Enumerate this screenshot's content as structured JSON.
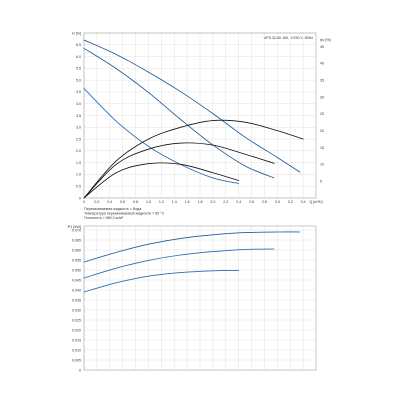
{
  "chart_data": [
    {
      "type": "line",
      "model": "UPS 32-80 180, 1*230 V, 50Hz",
      "ylabel_left": "H [m]",
      "ylabel_right": "η [%]",
      "xlabel": "Q [m³/h]",
      "xlim": [
        0,
        3.6
      ],
      "ylim_left": [
        0,
        7
      ],
      "ylim_right": [
        0,
        49
      ],
      "x_ticks": [
        "0",
        "0.2",
        "0.4",
        "0.6",
        "0.8",
        "1.0",
        "1.2",
        "1.4",
        "1.6",
        "1.8",
        "2.0",
        "2.2",
        "2.4",
        "2.6",
        "2.8",
        "3.0",
        "3.2",
        "3.4",
        "Q [m³/h]"
      ],
      "y_ticks_left": [
        "H [m]",
        "6.5",
        "6.0",
        "5.5",
        "5.0",
        "4.5",
        "4.0",
        "3.5",
        "3.0",
        "2.5",
        "2.0",
        "1.5",
        "1.0",
        "0.5",
        "0"
      ],
      "y_ticks_right": [
        "ηs [%]",
        "45",
        "40",
        "35",
        "30",
        "25",
        "20",
        "15",
        "10",
        "5"
      ],
      "grid": true,
      "notes": [
        "Перекачиваемая жидкость = Вода",
        "Температура перекачиваемой жидкости = 65 °C",
        "Плотность = 980.2 кг/м³"
      ],
      "series": [
        {
          "color": "#1f5a99",
          "axis": "left",
          "x": [
            0,
            0.5,
            1.0,
            1.5,
            2.0,
            2.5,
            3.0,
            3.35
          ],
          "y": [
            6.7,
            6.09,
            5.34,
            4.51,
            3.58,
            2.58,
            1.72,
            1.1
          ]
        },
        {
          "color": "#1f5a99",
          "axis": "left",
          "x": [
            0,
            0.5,
            1.0,
            1.5,
            2.0,
            2.5,
            2.95
          ],
          "y": [
            6.35,
            5.49,
            4.48,
            3.33,
            2.25,
            1.36,
            0.85
          ]
        },
        {
          "color": "#2b6cb0",
          "axis": "left",
          "x": [
            0,
            0.5,
            1.0,
            1.5,
            2.0,
            2.4
          ],
          "y": [
            4.65,
            3.26,
            2.19,
            1.42,
            0.85,
            0.62
          ]
        },
        {
          "color": "#111111",
          "axis": "right",
          "x": [
            0,
            0.5,
            1.0,
            1.5,
            2.0,
            2.5,
            3.0,
            3.4
          ],
          "y": [
            0,
            11.0,
            17.5,
            21.0,
            23.0,
            22.5,
            20.0,
            17.5
          ]
        },
        {
          "color": "#111111",
          "axis": "right",
          "x": [
            0,
            0.5,
            1.0,
            1.5,
            2.0,
            2.5,
            2.95
          ],
          "y": [
            0,
            10.0,
            14.5,
            16.3,
            15.7,
            13.0,
            10.3
          ]
        },
        {
          "color": "#111111",
          "axis": "right",
          "x": [
            0,
            0.5,
            1.0,
            1.5,
            2.0,
            2.4
          ],
          "y": [
            0,
            7.5,
            10.2,
            10.0,
            7.5,
            5.2
          ]
        }
      ]
    },
    {
      "type": "line",
      "ylabel": "P1 [kW]",
      "xlim": [
        0,
        3.6
      ],
      "ylim": [
        0,
        0.07
      ],
      "y_ticks": [
        "P1 [kW]",
        "0.070",
        "0.065",
        "0.060",
        "0.055",
        "0.050",
        "0.045",
        "0.040",
        "0.035",
        "0.030",
        "0.025",
        "0.020",
        "0.015",
        "0.010",
        "0.005",
        "0"
      ],
      "grid": true,
      "series": [
        {
          "color": "#1f5a99",
          "x": [
            0,
            0.5,
            1.0,
            1.5,
            2.0,
            2.5,
            3.0,
            3.35
          ],
          "y": [
            0.054,
            0.0588,
            0.0629,
            0.0658,
            0.0676,
            0.0687,
            0.069,
            0.069
          ]
        },
        {
          "color": "#2b6cb0",
          "x": [
            0,
            0.5,
            1.0,
            1.5,
            2.0,
            2.5,
            2.95
          ],
          "y": [
            0.046,
            0.0509,
            0.0548,
            0.0575,
            0.0592,
            0.0603,
            0.0605
          ]
        },
        {
          "color": "#2b6cb0",
          "x": [
            0,
            0.5,
            1.0,
            1.5,
            2.0,
            2.4
          ],
          "y": [
            0.039,
            0.0436,
            0.0469,
            0.0487,
            0.0496,
            0.0498
          ]
        }
      ]
    }
  ]
}
